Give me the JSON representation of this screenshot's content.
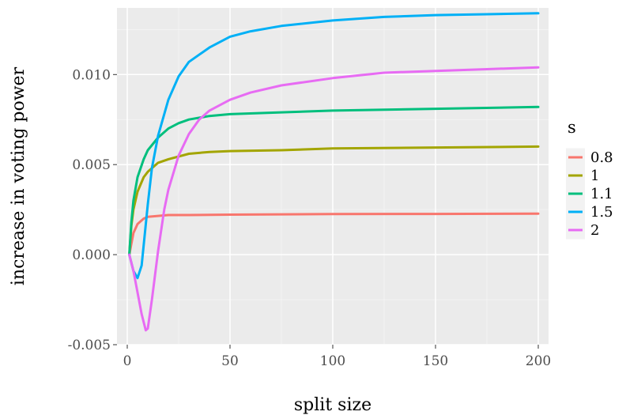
{
  "chart_data": {
    "type": "line",
    "xlabel": "split size",
    "ylabel": "increase in voting power",
    "xlim": [
      -5,
      205
    ],
    "ylim": [
      -0.005,
      0.0137
    ],
    "x_ticks": [
      0,
      50,
      100,
      150,
      200
    ],
    "x_tick_labels": [
      "0",
      "50",
      "100",
      "150",
      "200"
    ],
    "y_ticks": [
      -0.005,
      0.0,
      0.005,
      0.01
    ],
    "y_tick_labels": [
      "-0.005",
      "0.000",
      "0.005",
      "0.010"
    ],
    "grid": true,
    "legend": {
      "title": "s",
      "position": "right"
    },
    "series": [
      {
        "name": "0.8",
        "color": "#F8766D",
        "x": [
          1,
          3,
          5,
          8,
          10,
          15,
          20,
          30,
          50,
          100,
          150,
          200
        ],
        "y": [
          0.0,
          0.0012,
          0.0017,
          0.002,
          0.0021,
          0.00215,
          0.0022,
          0.0022,
          0.00222,
          0.00225,
          0.00226,
          0.00228
        ]
      },
      {
        "name": "1",
        "color": "#A3A500",
        "x": [
          1,
          2,
          3,
          5,
          8,
          10,
          15,
          20,
          30,
          40,
          50,
          75,
          100,
          150,
          200
        ],
        "y": [
          0.0,
          0.0016,
          0.0025,
          0.0035,
          0.0043,
          0.0046,
          0.0051,
          0.0053,
          0.0056,
          0.0057,
          0.00575,
          0.0058,
          0.0059,
          0.00595,
          0.006
        ]
      },
      {
        "name": "1.1",
        "color": "#00BF7D",
        "x": [
          1,
          2,
          3,
          5,
          8,
          10,
          15,
          20,
          25,
          30,
          40,
          50,
          75,
          100,
          150,
          200
        ],
        "y": [
          0.0,
          0.0018,
          0.003,
          0.0043,
          0.0053,
          0.0058,
          0.0065,
          0.007,
          0.0073,
          0.0075,
          0.0077,
          0.0078,
          0.0079,
          0.008,
          0.0081,
          0.0082
        ]
      },
      {
        "name": "1.5",
        "color": "#00B0F6",
        "x": [
          1,
          3,
          5,
          7,
          10,
          12,
          15,
          20,
          25,
          30,
          40,
          50,
          60,
          75,
          100,
          125,
          150,
          175,
          200
        ],
        "y": [
          0.0,
          -0.0009,
          -0.0013,
          -0.0006,
          0.0028,
          0.0048,
          0.0066,
          0.0086,
          0.0099,
          0.0107,
          0.0115,
          0.0121,
          0.0124,
          0.0127,
          0.013,
          0.0132,
          0.0133,
          0.01335,
          0.0134
        ]
      },
      {
        "name": "2",
        "color": "#E76BF3",
        "x": [
          1,
          3,
          5,
          7,
          9,
          10,
          12,
          15,
          18,
          20,
          25,
          30,
          35,
          40,
          50,
          60,
          75,
          100,
          125,
          150,
          175,
          200
        ],
        "y": [
          0.0,
          -0.0009,
          -0.0021,
          -0.0033,
          -0.0042,
          -0.0041,
          -0.0025,
          0.0002,
          0.0025,
          0.0036,
          0.0055,
          0.0067,
          0.0075,
          0.008,
          0.0086,
          0.009,
          0.0094,
          0.0098,
          0.0101,
          0.0102,
          0.0103,
          0.0104
        ]
      }
    ]
  }
}
